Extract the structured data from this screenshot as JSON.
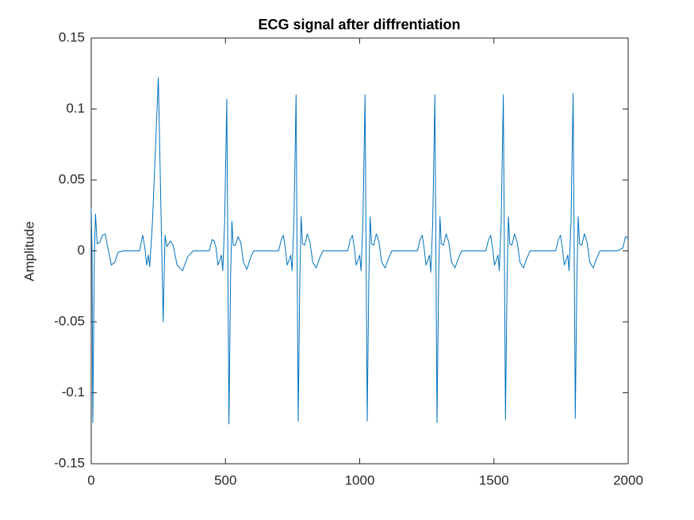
{
  "chart_data": {
    "type": "line",
    "title": "ECG signal after diffrentiation",
    "y_label": "Amplitude",
    "series": [
      {
        "color": "#0072bd",
        "x": [
          0,
          3,
          6,
          12,
          16,
          22,
          32,
          42,
          52,
          62,
          75,
          88,
          100,
          120,
          140,
          180,
          192,
          200,
          207,
          213,
          218,
          228,
          250,
          268,
          275,
          282,
          295,
          305,
          320,
          340,
          360,
          380,
          440,
          450,
          458,
          465,
          472,
          480,
          485,
          490,
          497,
          505,
          513,
          519,
          524,
          529,
          537,
          547,
          557,
          567,
          580,
          593,
          605,
          698,
          708,
          716,
          723,
          730,
          738,
          743,
          748,
          755,
          763,
          771,
          777,
          782,
          787,
          795,
          805,
          815,
          825,
          838,
          851,
          863,
          955,
          965,
          973,
          980,
          987,
          995,
          1000,
          1005,
          1012,
          1020,
          1028,
          1034,
          1039,
          1044,
          1052,
          1062,
          1072,
          1082,
          1095,
          1108,
          1120,
          1215,
          1225,
          1233,
          1240,
          1247,
          1255,
          1260,
          1265,
          1272,
          1280,
          1288,
          1294,
          1299,
          1304,
          1312,
          1322,
          1332,
          1342,
          1355,
          1368,
          1380,
          1470,
          1480,
          1488,
          1495,
          1502,
          1510,
          1515,
          1520,
          1527,
          1535,
          1543,
          1549,
          1554,
          1559,
          1567,
          1577,
          1587,
          1597,
          1610,
          1623,
          1635,
          1730,
          1740,
          1748,
          1755,
          1762,
          1770,
          1775,
          1780,
          1787,
          1795,
          1803,
          1809,
          1814,
          1819,
          1827,
          1837,
          1847,
          1857,
          1870,
          1883,
          1895,
          1930,
          1960,
          1980,
          1990,
          2000
        ],
        "values": [
          0.03,
          0.0,
          -0.121,
          0.0,
          0.026,
          0.005,
          0.006,
          0.011,
          0.012,
          0.002,
          -0.01,
          -0.008,
          -0.001,
          0,
          0,
          0,
          0.011,
          0.002,
          -0.01,
          -0.003,
          -0.011,
          0.02,
          0.122,
          -0.05,
          0.011,
          0.003,
          0.007,
          0.004,
          -0.01,
          -0.014,
          -0.004,
          0,
          0,
          0.008,
          0.007,
          0.002,
          -0.01,
          -0.006,
          -0.003,
          -0.014,
          0.02,
          0.107,
          -0.122,
          -0.02,
          0.021,
          0.004,
          0.004,
          0.01,
          0.006,
          -0.008,
          -0.013,
          -0.005,
          0,
          0,
          0.008,
          0.011,
          0.002,
          -0.01,
          -0.006,
          -0.003,
          -0.014,
          0.02,
          0.11,
          -0.12,
          -0.02,
          0.024,
          0.005,
          0.004,
          0.012,
          0.006,
          -0.008,
          -0.012,
          -0.005,
          0,
          0,
          0.008,
          0.011,
          0.002,
          -0.01,
          -0.006,
          -0.003,
          -0.014,
          0.02,
          0.11,
          -0.12,
          -0.02,
          0.024,
          0.005,
          0.004,
          0.012,
          0.006,
          -0.008,
          -0.012,
          -0.005,
          0,
          0,
          0.008,
          0.011,
          0.002,
          -0.01,
          -0.006,
          -0.003,
          -0.015,
          0.02,
          0.11,
          -0.121,
          -0.02,
          0.024,
          0.005,
          0.004,
          0.012,
          0.006,
          -0.008,
          -0.012,
          -0.005,
          0,
          0,
          0.008,
          0.011,
          0.002,
          -0.01,
          -0.006,
          -0.003,
          -0.014,
          0.02,
          0.11,
          -0.119,
          -0.02,
          0.024,
          0.005,
          0.004,
          0.012,
          0.006,
          -0.008,
          -0.012,
          -0.005,
          0,
          0,
          0.008,
          0.011,
          0.002,
          -0.01,
          -0.006,
          -0.003,
          -0.014,
          0.02,
          0.111,
          -0.118,
          -0.02,
          0.024,
          0.005,
          0.004,
          0.012,
          0.006,
          -0.008,
          -0.012,
          -0.005,
          0,
          0,
          0,
          0.002,
          0.01,
          0.009
        ]
      }
    ],
    "xlim": [
      0,
      2000
    ],
    "xticks": [
      0,
      500,
      1000,
      1500,
      2000
    ],
    "ylim": [
      -0.15,
      0.15
    ],
    "yticks": [
      -0.15,
      -0.1,
      -0.05,
      0,
      0.05,
      0.1,
      0.15
    ],
    "grid": false
  }
}
